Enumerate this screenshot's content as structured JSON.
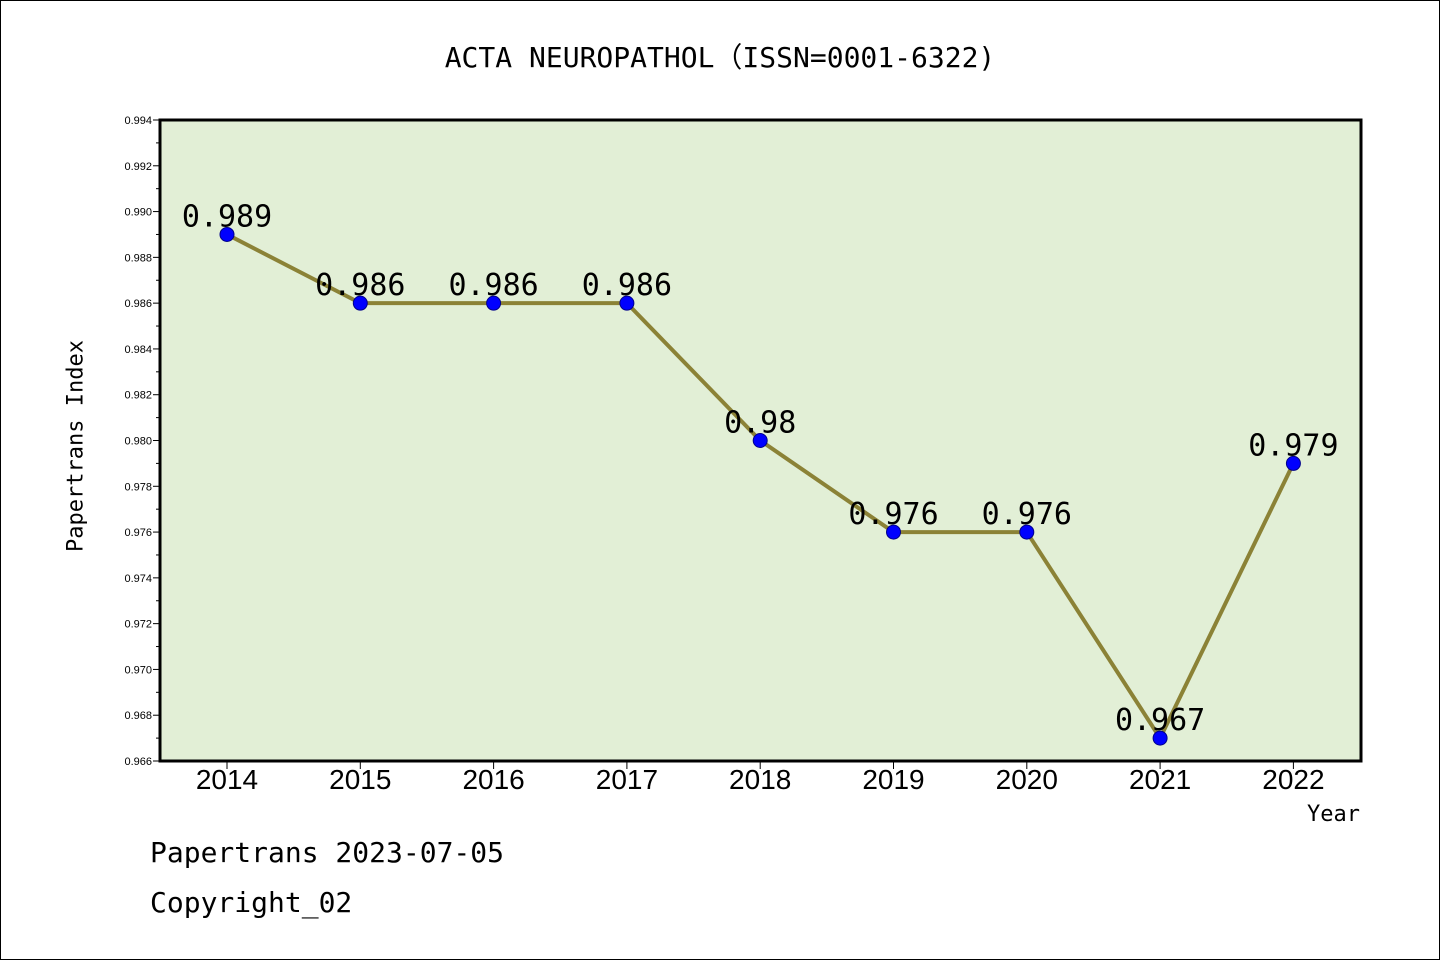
{
  "chart_data": {
    "type": "line",
    "title": "ACTA NEUROPATHOL（ISSN=0001-6322)",
    "xlabel": "Year",
    "ylabel": "Papertrans Index",
    "categories": [
      "2014",
      "2015",
      "2016",
      "2017",
      "2018",
      "2019",
      "2020",
      "2021",
      "2022"
    ],
    "series": [
      {
        "values": [
          0.989,
          0.986,
          0.986,
          0.986,
          0.98,
          0.976,
          0.976,
          0.967,
          0.979
        ],
        "labels": [
          "0.989",
          "0.986",
          "0.986",
          "0.986",
          "0.98",
          "0.976",
          "0.976",
          "0.967",
          "0.979"
        ]
      }
    ],
    "ylim": [
      0.966,
      0.994
    ],
    "yticks": [
      "0.966",
      "0.968",
      "0.970",
      "0.972",
      "0.974",
      "0.976",
      "0.978",
      "0.980",
      "0.982",
      "0.984",
      "0.986",
      "0.988",
      "0.990",
      "0.992",
      "0.994"
    ],
    "grid": false,
    "colors": {
      "line": "#8b8236",
      "marker": "#0000ff",
      "plot_background": "#e2efd6"
    }
  },
  "footer": {
    "line1": "Papertrans 2023-07-05",
    "line2": "Copyright_02"
  }
}
